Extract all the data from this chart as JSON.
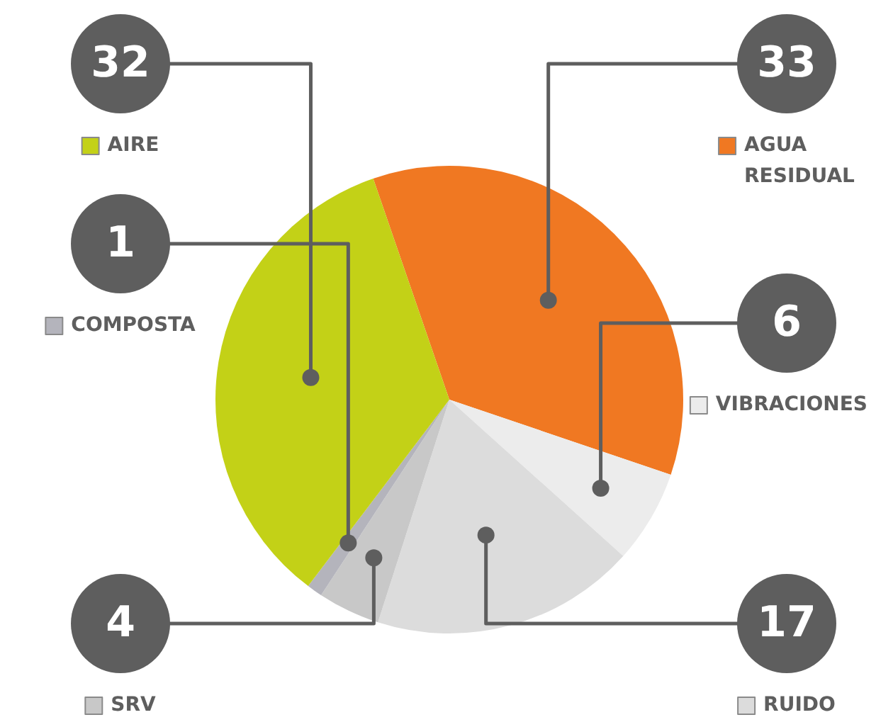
{
  "chart_data": {
    "type": "pie",
    "categories": [
      "AGUA RESIDUAL",
      "VIBRACIONES",
      "RUIDO",
      "SRV",
      "COMPOSTA",
      "AIRE"
    ],
    "values": [
      33,
      6,
      17,
      4,
      1,
      32
    ],
    "colors": [
      "#f07822",
      "#ececec",
      "#dcdcdc",
      "#c8c8c8",
      "#b4b4bc",
      "#c3d117"
    ],
    "legend": "left",
    "data_labels": true
  }
}
